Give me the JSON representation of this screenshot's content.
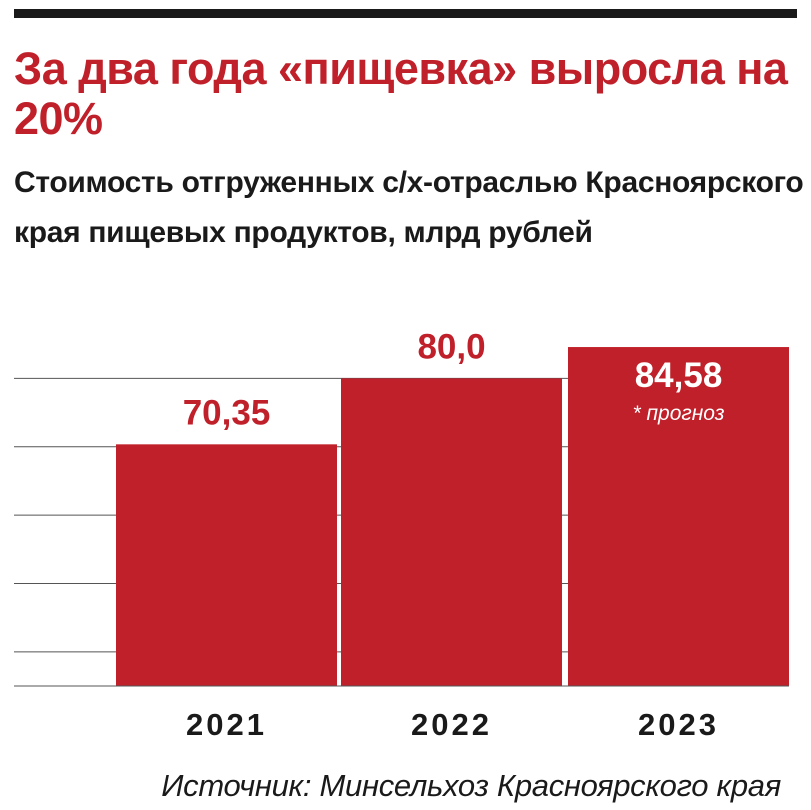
{
  "title": "За два года «пищевка» выросла на 20%",
  "subtitle": "Стоимость отгруженных с/х-отраслью Красноярского края пищевых продуктов, млрд рублей",
  "source": "Источник: Минсельхоз Красноярского края",
  "colors": {
    "bar": "#c0202a",
    "value_label": "#c0202a",
    "inside_label": "#ffffff",
    "gridline": "#555555",
    "text": "#1a1a1a"
  },
  "chart_data": {
    "type": "bar",
    "title": "За два года «пищевка» выросла на 20%",
    "subtitle": "Стоимость отгруженных с/х-отраслью Красноярского края пищевых продуктов, млрд рублей",
    "categories": [
      "2021",
      "2022",
      "2023"
    ],
    "values": [
      70.35,
      80.0,
      84.58
    ],
    "value_labels": [
      "70,35",
      "80,0",
      "84,58"
    ],
    "notes": [
      "",
      "",
      "* прогноз"
    ],
    "ylim": [
      35,
      90
    ],
    "grid": true,
    "legend": "none",
    "xlabel": "",
    "ylabel": ""
  }
}
